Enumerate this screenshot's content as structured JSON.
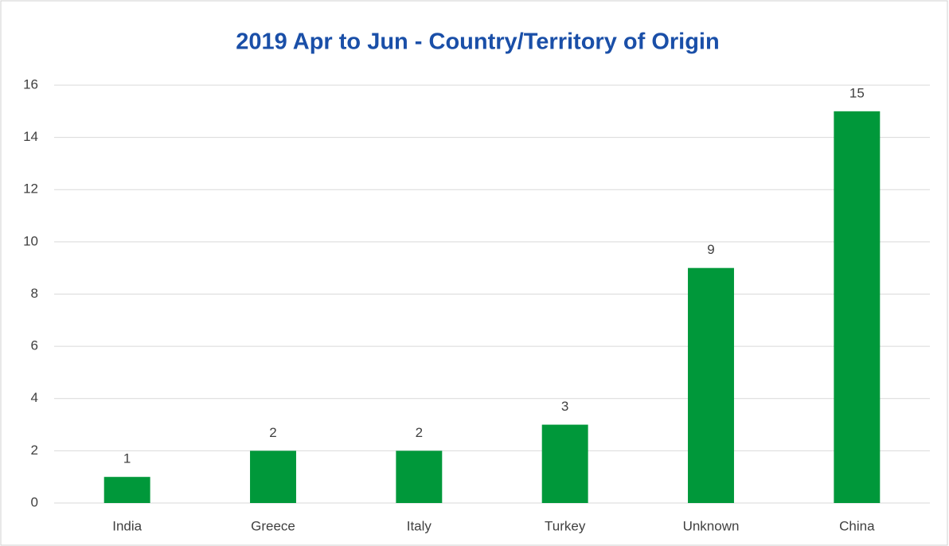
{
  "chart_data": {
    "type": "bar",
    "title": "2019 Apr to Jun - Country/Territory of Origin",
    "categories": [
      "India",
      "Greece",
      "Italy",
      "Turkey",
      "Unknown",
      "China"
    ],
    "values": [
      1,
      2,
      2,
      3,
      9,
      15
    ],
    "color": "#00983a",
    "ylim": [
      0,
      16
    ],
    "yticks": [
      0,
      2,
      4,
      6,
      8,
      10,
      12,
      14,
      16
    ],
    "grid": true
  }
}
